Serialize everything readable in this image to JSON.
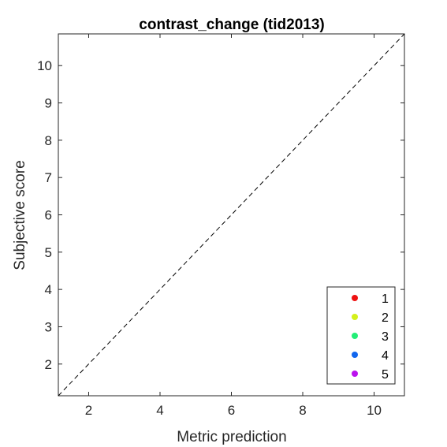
{
  "chart_data": {
    "type": "scatter",
    "title": "contrast_change (tid2013)",
    "xlabel": "Metric prediction",
    "ylabel": "Subjective score",
    "xlim": [
      1.15,
      10.85
    ],
    "ylim": [
      1.15,
      10.85
    ],
    "xticks": [
      2,
      4,
      6,
      8,
      10
    ],
    "yticks": [
      2,
      3,
      4,
      5,
      6,
      7,
      8,
      9,
      10
    ],
    "grid": false,
    "reference_line": {
      "style": "dashed",
      "from": [
        1.15,
        1.15
      ],
      "to": [
        10.85,
        10.85
      ]
    },
    "legend_position": "bottom-right",
    "series": [
      {
        "name": "1",
        "color": "#ee1111",
        "points": []
      },
      {
        "name": "2",
        "color": "#d4f01a",
        "points": []
      },
      {
        "name": "3",
        "color": "#22ee77",
        "points": []
      },
      {
        "name": "4",
        "color": "#1166ee",
        "points": []
      },
      {
        "name": "5",
        "color": "#bb11ee",
        "points": []
      }
    ]
  }
}
